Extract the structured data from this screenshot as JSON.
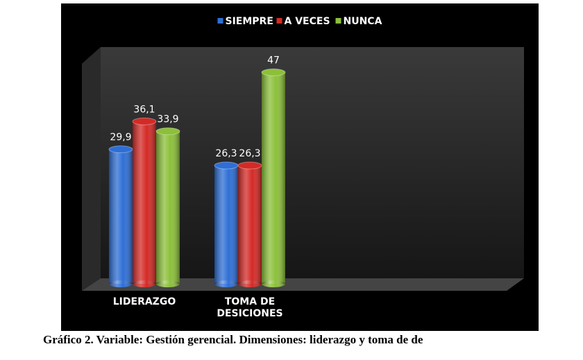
{
  "chart_data": {
    "type": "bar",
    "categories": [
      "LIDERAZGO",
      "TOMA DE DESICIONES"
    ],
    "series": [
      {
        "name": "SIEMPRE",
        "color": "#2e6fd6",
        "values": [
          29.9,
          26.3
        ],
        "value_labels": [
          "29,9",
          "26,3"
        ]
      },
      {
        "name": "A VECES",
        "color": "#d42a26",
        "values": [
          36.1,
          26.3
        ],
        "value_labels": [
          "36,1",
          "26,3"
        ]
      },
      {
        "name": "NUNCA",
        "color": "#8cc03a",
        "values": [
          33.9,
          47
        ],
        "value_labels": [
          "33,9",
          "47"
        ]
      }
    ],
    "legend": "top"
  },
  "caption": "Gráfico 2. Variable: Gestión gerencial. Dimensiones: liderazgo y toma de de"
}
